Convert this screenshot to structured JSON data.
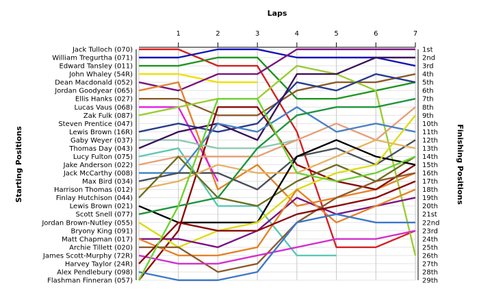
{
  "chart_data": {
    "type": "line",
    "title": "Laps",
    "ylabel_left": "Starting Positions",
    "ylabel_right": "Finishing Positions",
    "x": [
      0,
      1,
      2,
      3,
      4,
      5,
      6,
      7
    ],
    "x_tick_labels": [
      "1",
      "2",
      "3",
      "4",
      "5",
      "6",
      "7"
    ],
    "y_reversed": true,
    "ylim": [
      1,
      29
    ],
    "grid": true,
    "start_labels": [
      "Jack Tulloch (070)",
      "William Tregurtha (071)",
      "Edward Tansley (011)",
      "John Whaley (54R)",
      "Dean Macdonald (052)",
      "Jordan Goodyear (065)",
      "Ellis Hanks (027)",
      "Lucas Vaus (068)",
      "Zak Fulk (087)",
      "Steven Prentice (047)",
      "Lewis Brown (16R)",
      "Gaby Weyer (037)",
      "Thomas Day (043)",
      "Lucy Fulton (075)",
      "Jake Anderson (022)",
      "Jack McCarthy (008)",
      "Max Bird (034)",
      "Harrison Thomas (012)",
      "Finlay Hutchison (044)",
      "Lewis Brown (021)",
      "Scott Snell (077)",
      "Jordan Brown-Nutley (055)",
      "Bryony King (091)",
      "Matt Chapman (017)",
      "Archie Tillett (020)",
      "James Scott-Murphy (72R)",
      "Harvey Taylor (24R)",
      "Alex Pendlebury (098)",
      "Flashman Finneran (057)"
    ],
    "finish_labels": [
      "1st",
      "2nd",
      "3rd",
      "4th",
      "5th",
      "6th",
      "7th",
      "8th",
      "9th",
      "10th",
      "11th",
      "12th",
      "13th",
      "14th",
      "15th",
      "16th",
      "17th",
      "18th",
      "19th",
      "20th",
      "21st",
      "22nd",
      "23rd",
      "24th",
      "25th",
      "26th",
      "27th",
      "28th",
      "29th"
    ],
    "series": [
      {
        "color": "#d42020",
        "positions": [
          1,
          1,
          3,
          3,
          11,
          25,
          25,
          23
        ]
      },
      {
        "color": "#1414b4",
        "positions": [
          2,
          2,
          1,
          1,
          2,
          2,
          2,
          3
        ]
      },
      {
        "color": "#1e961e",
        "positions": [
          3,
          3,
          2,
          2,
          7,
          7,
          6,
          5
        ]
      },
      {
        "color": "#f0e000",
        "positions": [
          4,
          4,
          5,
          5
        ]
      },
      {
        "color": "#7a1480",
        "positions": [
          5,
          6,
          4,
          4,
          1,
          1,
          1,
          1
        ]
      },
      {
        "color": "#e68228",
        "positions": [
          6,
          5,
          18,
          15,
          20,
          19,
          18,
          16
        ]
      },
      {
        "color": "#8c5a2c",
        "positions": [
          7,
          7,
          9,
          9,
          6,
          5,
          5,
          4
        ]
      },
      {
        "color": "#e020e0",
        "positions": [
          8,
          8,
          17
        ]
      },
      {
        "color": "#9acd32",
        "positions": [
          9,
          8,
          7,
          7,
          3,
          4,
          6,
          26
        ]
      },
      {
        "color": "#8c0a0a",
        "positions": [
          29,
          23,
          8,
          8,
          15,
          17,
          18,
          15
        ]
      },
      {
        "color": "#283c8c",
        "positions": [
          11,
          10,
          11,
          10,
          5,
          6,
          4,
          5
        ]
      },
      {
        "color": "#90c8b4",
        "positions": [
          12,
          12,
          13,
          13,
          12
        ]
      },
      {
        "color": "#3c145a",
        "positions": [
          13,
          11,
          10,
          12,
          4,
          4,
          2,
          2
        ]
      },
      {
        "color": "#5ac8b4",
        "positions": [
          14,
          13,
          20,
          20,
          26,
          26
        ]
      },
      {
        "color": "#e6a078",
        "positions": [
          15,
          14,
          14,
          14,
          12,
          10,
          12,
          8
        ]
      },
      {
        "color": "#4682c8",
        "positions": [
          16,
          16,
          10,
          11,
          8,
          11,
          10,
          11
        ]
      },
      {
        "color": "#48505a",
        "positions": [
          17,
          16,
          16,
          18,
          14,
          13,
          15,
          12
        ]
      },
      {
        "color": "#e6b464",
        "positions": [
          18,
          17,
          15,
          16,
          16,
          14,
          12,
          13
        ]
      },
      {
        "color": "#6e6e1e",
        "positions": [
          19,
          14,
          19,
          20,
          17,
          15,
          17,
          14
        ]
      },
      {
        "color": "#000000",
        "positions": [
          20,
          22,
          22,
          22,
          14,
          12,
          14,
          15
        ]
      },
      {
        "color": "#1e963c",
        "positions": [
          21,
          20,
          19,
          13,
          9,
          8,
          8,
          7
        ]
      },
      {
        "color": "#dcdc14",
        "positions": [
          22,
          25,
          23,
          22,
          18,
          16,
          15,
          9
        ]
      },
      {
        "color": "#7a1480",
        "positions": [
          24,
          24,
          25,
          23,
          19,
          21,
          20,
          19
        ]
      },
      {
        "color": "#e68228",
        "positions": [
          24,
          26,
          26,
          25,
          18,
          22,
          20,
          18
        ]
      },
      {
        "color": "#8c5a2c",
        "positions": [
          25,
          25,
          28,
          27,
          22,
          19,
          17,
          16
        ]
      },
      {
        "color": "#d430d0",
        "positions": [
          26,
          27,
          27,
          26,
          25,
          24,
          24,
          23
        ]
      },
      {
        "color": "#3c78c8",
        "positions": [
          28,
          29,
          29,
          28,
          22,
          21,
          22,
          22
        ]
      },
      {
        "color": "#8c0a0a",
        "positions": [
          27,
          22,
          23,
          23,
          21,
          20,
          19,
          17
        ]
      },
      {
        "color": "#6ed232",
        "positions": [
          29,
          20,
          7,
          7,
          16,
          17,
          16,
          14
        ]
      }
    ]
  }
}
